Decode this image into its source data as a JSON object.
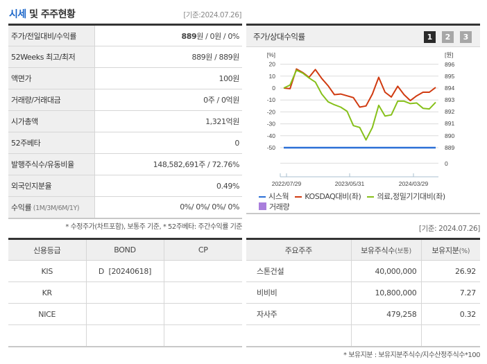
{
  "header": {
    "title_highlight": "시세",
    "title_rest": " 및 주주현황",
    "date": "[기준:2024.07.26]"
  },
  "stats": [
    {
      "label": "주가/전일대비/수익률",
      "sub": "",
      "value_bold": "889",
      "value": "원 / 0원 / 0%"
    },
    {
      "label": "52Weeks 최고/최저",
      "sub": "",
      "value_bold": "",
      "value": "889원 / 889원"
    },
    {
      "label": "액면가",
      "sub": "",
      "value_bold": "",
      "value": "100원"
    },
    {
      "label": "거래량/거래대금",
      "sub": "",
      "value_bold": "",
      "value": "0주 / 0억원"
    },
    {
      "label": "시가총액",
      "sub": "",
      "value_bold": "",
      "value": "1,321억원"
    },
    {
      "label": "52주베타",
      "sub": "",
      "value_bold": "",
      "value": "0"
    },
    {
      "label": "발행주식수/유동비율",
      "sub": "",
      "value_bold": "",
      "value": "148,582,691주 / 72.76%"
    },
    {
      "label": "외국인지분율",
      "sub": "",
      "value_bold": "",
      "value": "0.49%"
    },
    {
      "label": "수익률",
      "sub": " (1M/3M/6M/1Y)",
      "value_bold": "",
      "value": "0%/ 0%/ 0%/ 0%"
    }
  ],
  "stats_note": "* 수정주가(차트포함), 보통주 기준, * 52주베타: 주간수익률 기준",
  "chart_panel": {
    "title": "주가/상대수익률",
    "pages": [
      "1",
      "2",
      "3"
    ],
    "active_page": "1"
  },
  "chart_data": {
    "type": "line",
    "title": "주가/상대수익률",
    "left_axis": {
      "label": "[%]",
      "ticks": [
        20,
        10,
        0,
        -10,
        -20,
        -30,
        -40,
        -50
      ],
      "range": [
        -60,
        20
      ]
    },
    "right_axis": {
      "label": "[원]",
      "ticks": [
        "896",
        "895",
        "894",
        "893",
        "892",
        "891",
        "890",
        "889",
        "0"
      ]
    },
    "x_ticks": [
      "2022/07/29",
      "2023/05/31",
      "2024/03/29"
    ],
    "grid": true,
    "legend_position": "bottom",
    "series": [
      {
        "name": "시스웍",
        "color": "#2a6fd6",
        "axis": "right",
        "values": [
          -50,
          -50,
          -50,
          -50,
          -50,
          -50,
          -50,
          -50,
          -50,
          -50,
          -50,
          -50,
          -50,
          -50,
          -50,
          -50,
          -50,
          -50,
          -50,
          -50,
          -50,
          -50,
          -50,
          -50,
          -50
        ]
      },
      {
        "name": "KOSDAQ대비(좌)",
        "color": "#d03a10",
        "axis": "left",
        "values": [
          0,
          -0.5,
          16,
          13,
          9,
          15.5,
          8,
          2,
          -5.5,
          -5,
          -6.5,
          -8,
          -16,
          -15,
          -5,
          9,
          -3.5,
          -7.5,
          1.5,
          -5.5,
          -10.5,
          -6.5,
          -3.5,
          -3.5,
          0.5
        ]
      },
      {
        "name": "의료,정밀기기대비(좌)",
        "color": "#86c01a",
        "axis": "left",
        "values": [
          0,
          2.5,
          15,
          12.5,
          8.5,
          5,
          -5,
          -11.5,
          -14,
          -16,
          -19.5,
          -31.5,
          -33,
          -43.5,
          -33,
          -14.5,
          -23.5,
          -22.5,
          -11,
          -11,
          -13,
          -12.5,
          -17,
          -17.5,
          -12
        ]
      },
      {
        "name": "거래량",
        "color": "#a97edc",
        "axis": "right",
        "values": []
      }
    ]
  },
  "legend": [
    {
      "label": "시스웍",
      "color": "#2a6fd6",
      "kind": "line"
    },
    {
      "label": "KOSDAQ대비(좌)",
      "color": "#d03a10",
      "kind": "line"
    },
    {
      "label": "의료,정밀기기대비(좌)",
      "color": "#86c01a",
      "kind": "line"
    },
    {
      "label": "거래량",
      "color": "#a97edc",
      "kind": "box"
    }
  ],
  "date2": "[기준: 2024.07.26]",
  "credit": {
    "headers": [
      "신용등급",
      "BOND",
      "CP"
    ],
    "rows": [
      [
        "KIS",
        "D  [20240618]",
        ""
      ],
      [
        "KR",
        "",
        ""
      ],
      [
        "NICE",
        "",
        ""
      ],
      [
        "",
        "",
        ""
      ]
    ]
  },
  "holders": {
    "headers": [
      {
        "main": "주요주주",
        "sub": ""
      },
      {
        "main": "보유주식수",
        "sub": "(보통)"
      },
      {
        "main": "보유지분",
        "sub": "(%)"
      }
    ],
    "rows": [
      [
        "스톤건설",
        "40,000,000",
        "26.92"
      ],
      [
        "비비비",
        "10,800,000",
        "7.27"
      ],
      [
        "자사주",
        "479,258",
        "0.32"
      ],
      [
        "",
        "",
        ""
      ]
    ],
    "note": "* 보유지분 : 보유지분주식수/지수산정주식수*100"
  }
}
